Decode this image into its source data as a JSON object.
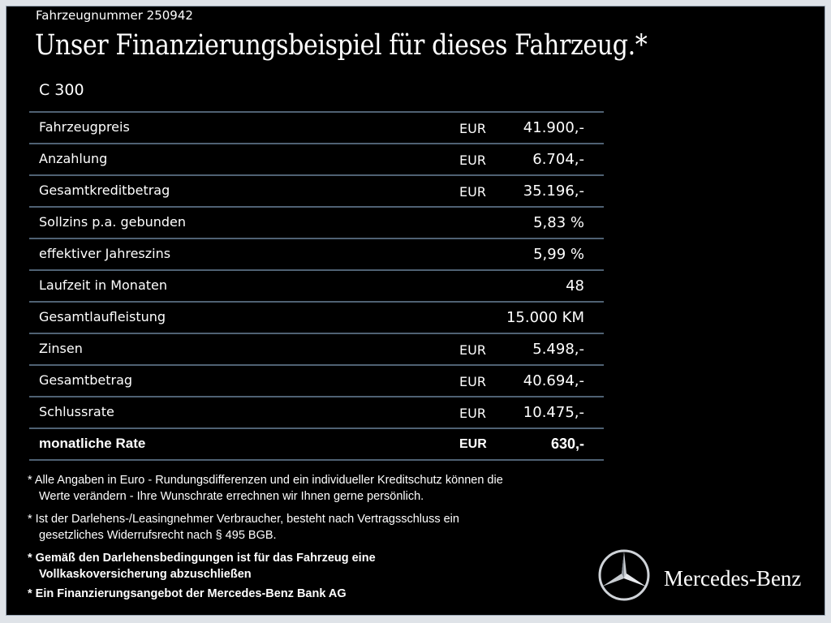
{
  "header": {
    "vehicle_number": "Fahrzeugnummer 250942",
    "title": "Unser Finanzierungsbeispiel für dieses Fahrzeug.*",
    "model": "C 300"
  },
  "rows": [
    {
      "label": "Fahrzeugpreis",
      "currency": "EUR",
      "value": "41.900,-"
    },
    {
      "label": "Anzahlung",
      "currency": "EUR",
      "value": "6.704,-"
    },
    {
      "label": "Gesamtkreditbetrag",
      "currency": "EUR",
      "value": "35.196,-"
    },
    {
      "label": "Sollzins p.a. gebunden",
      "currency": "",
      "value": "5,83 %"
    },
    {
      "label": "effektiver Jahreszins",
      "currency": "",
      "value": "5,99 %"
    },
    {
      "label": "Laufzeit in Monaten",
      "currency": "",
      "value": "48"
    },
    {
      "label": "Gesamtlaufleistung",
      "currency": "",
      "value": "15.000 KM"
    },
    {
      "label": "Zinsen",
      "currency": "EUR",
      "value": "5.498,-"
    },
    {
      "label": "Gesamtbetrag",
      "currency": "EUR",
      "value": "40.694,-"
    },
    {
      "label": "Schlussrate",
      "currency": "EUR",
      "value": "10.475,-"
    },
    {
      "label": "monatliche Rate",
      "currency": "EUR",
      "value": "630,-"
    }
  ],
  "notes": [
    {
      "l1": "* Alle Angaben in Euro - Rundungsdifferenzen und ein individueller Kreditschutz können die",
      "l2": "Werte verändern - Ihre Wunschrate errechnen wir Ihnen gerne persönlich."
    },
    {
      "l1": "* Ist der Darlehens-/Leasingnehmer Verbraucher, besteht nach Vertragsschluss ein",
      "l2": "gesetzliches Widerrufsrecht nach § 495 BGB."
    },
    {
      "l1": "* Gemäß den Darlehensbedingungen ist für das Fahrzeug eine",
      "l2": "Vollkaskoversicherung abzuschließen"
    },
    {
      "l1": "* Ein Finanzierungsangebot der Mercedes-Benz Bank AG",
      "l2": ""
    }
  ],
  "brand": {
    "name": "Mercedes-Benz",
    "icon": "mercedes-star-icon"
  }
}
